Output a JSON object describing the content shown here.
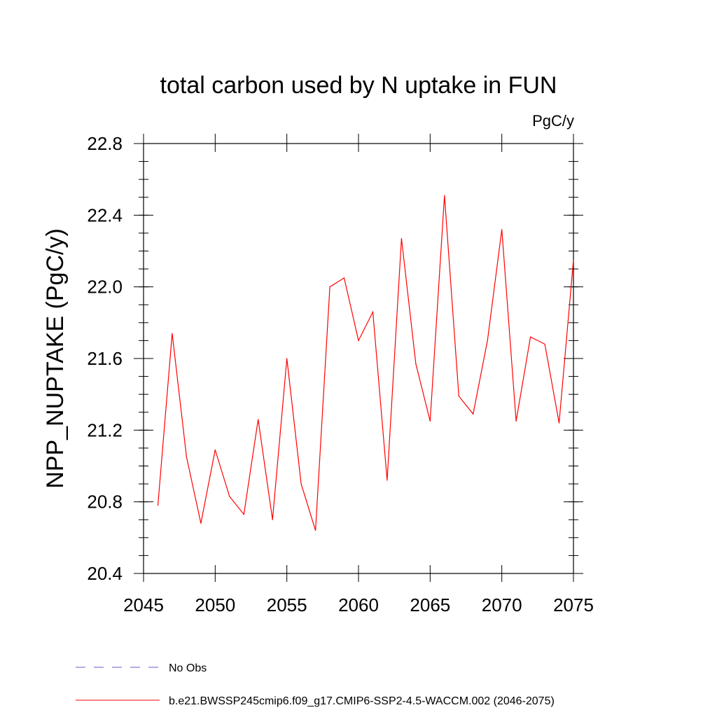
{
  "chart_data": {
    "type": "line",
    "title": "total carbon used by N uptake in FUN",
    "units": "PgC/y",
    "ylabel": "NPP_NUPTAKE  (PgC/y)",
    "xlabel": "",
    "xlim": [
      2045,
      2075
    ],
    "ylim": [
      20.4,
      22.8
    ],
    "xticks": [
      2045,
      2050,
      2055,
      2060,
      2065,
      2070,
      2075
    ],
    "yticks": [
      "20.4",
      "20.8",
      "21.2",
      "21.6",
      "22.0",
      "22.4",
      "22.8"
    ],
    "grid": false,
    "legend_position": "bottom-left",
    "series": [
      {
        "name": "b.e21.BWSSP245cmip6.f09_g17.CMIP6-SSP2-4.5-WACCM.002 (2046-2075)",
        "color": "#ff0000",
        "style": "solid",
        "x": [
          2046,
          2047,
          2048,
          2049,
          2050,
          2051,
          2052,
          2053,
          2054,
          2055,
          2056,
          2057,
          2058,
          2059,
          2060,
          2061,
          2062,
          2063,
          2064,
          2065,
          2066,
          2067,
          2068,
          2069,
          2070,
          2071,
          2072,
          2073,
          2074,
          2075
        ],
        "y": [
          20.78,
          21.74,
          21.05,
          20.68,
          21.09,
          20.83,
          20.73,
          21.26,
          20.7,
          21.6,
          20.9,
          20.64,
          22.0,
          22.05,
          21.7,
          21.86,
          20.92,
          22.27,
          21.57,
          21.25,
          22.51,
          21.39,
          21.29,
          21.7,
          22.32,
          21.25,
          21.72,
          21.68,
          21.24,
          22.15
        ]
      }
    ],
    "legend": [
      {
        "label": "No Obs",
        "color": "#6a5acd",
        "style": "dashed"
      },
      {
        "label": "b.e21.BWSSP245cmip6.f09_g17.CMIP6-SSP2-4.5-WACCM.002 (2046-2075)",
        "color": "#ff0000",
        "style": "solid"
      }
    ]
  }
}
